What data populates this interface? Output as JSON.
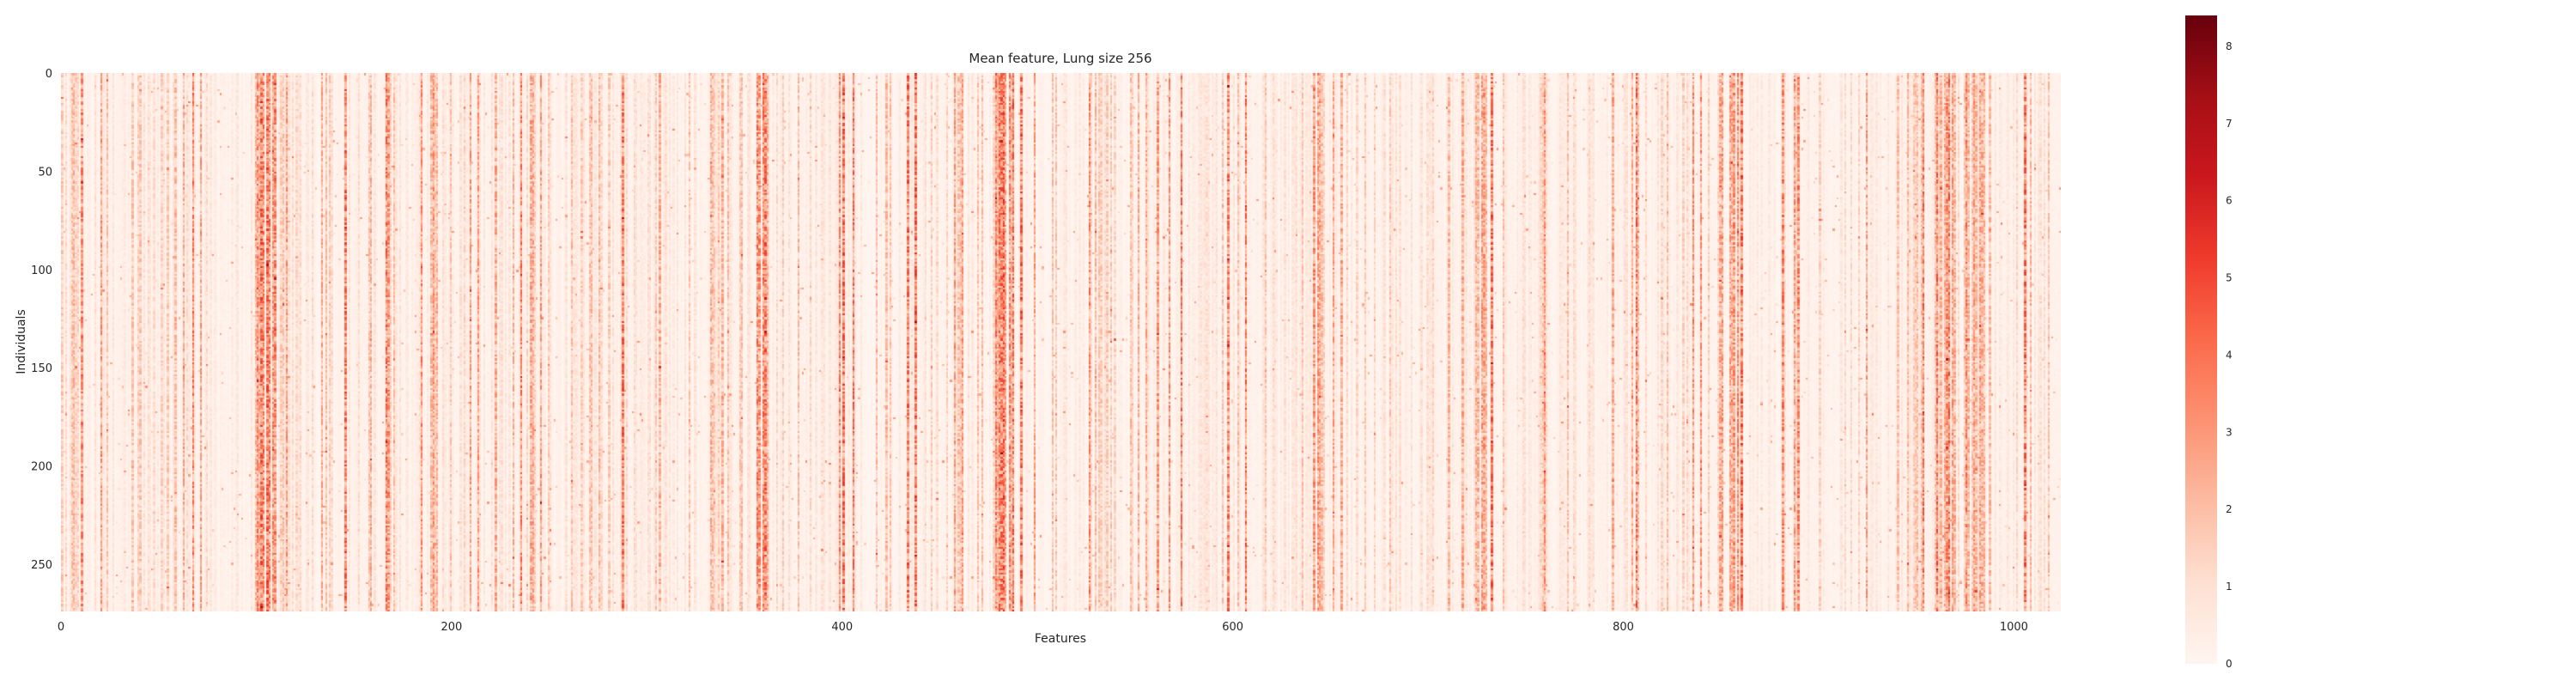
{
  "chart_data": {
    "type": "heatmap",
    "title": "Mean feature, Lung size 256",
    "xlabel": "Features",
    "ylabel": "Individuals",
    "xlim": [
      0,
      1024
    ],
    "ylim": [
      0,
      274
    ],
    "n_features": 1024,
    "n_individuals": 274,
    "x_ticks": [
      0,
      200,
      400,
      600,
      800,
      1000
    ],
    "y_ticks": [
      0,
      50,
      100,
      150,
      200,
      250
    ],
    "colorbar": {
      "colormap": "Reds",
      "range": [
        0,
        8.4
      ],
      "ticks": [
        0,
        1,
        2,
        3,
        4,
        5,
        6,
        7,
        8
      ],
      "color_low": "#fff5f0",
      "color_high": "#67000d"
    },
    "grid": false,
    "column_mean_profile": [
      {
        "feature_range": [
          0,
          10
        ],
        "mean": 1.5
      },
      {
        "feature_range": [
          100,
          110
        ],
        "mean": 3.0
      },
      {
        "feature_range": [
          145,
          152
        ],
        "mean": 4.0
      },
      {
        "feature_range": [
          330,
          340
        ],
        "mean": 2.2
      },
      {
        "feature_range": [
          355,
          362
        ],
        "mean": 3.0
      },
      {
        "feature_range": [
          478,
          492
        ],
        "mean": 3.2
      },
      {
        "feature_range": [
          528,
          540
        ],
        "mean": 1.6
      },
      {
        "feature_range": [
          640,
          645
        ],
        "mean": 3.2
      },
      {
        "feature_range": [
          720,
          730
        ],
        "mean": 2.2
      },
      {
        "feature_range": [
          848,
          860
        ],
        "mean": 2.8
      },
      {
        "feature_range": [
          880,
          890
        ],
        "mean": 2.6
      },
      {
        "feature_range": [
          960,
          970
        ],
        "mean": 3.0
      },
      {
        "feature_range": [
          975,
          985
        ],
        "mean": 2.4
      }
    ]
  }
}
